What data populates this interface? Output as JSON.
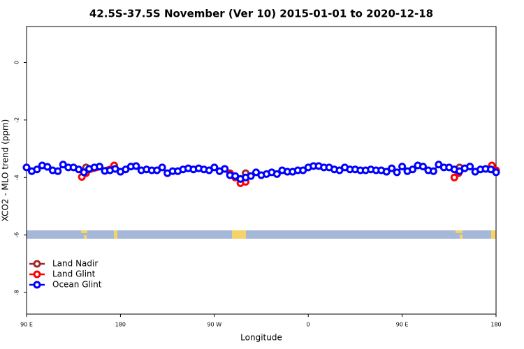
{
  "chart_data": {
    "type": "line",
    "title": "42.5S-37.5S November (Ver 10)   2015-01-01 to 2020-12-18",
    "x_label": "Longitude",
    "y_label": "XCO2 - MLO trend (ppm)",
    "xlim": [
      90,
      540
    ],
    "ylim": [
      -8.75,
      1.25
    ],
    "xticks": [
      {
        "value": 90,
        "label": "90 E"
      },
      180,
      {
        "value": 270,
        "label": "90 W"
      },
      {
        "value": 360,
        "label": "0"
      },
      {
        "value": 450,
        "label": "90 E"
      },
      {
        "value": 540,
        "label": "180"
      }
    ],
    "yticks": [
      0,
      -2,
      -4,
      -6,
      -8
    ],
    "legend": "bottomleft",
    "series": [
      {
        "name": "Land Nadir",
        "color": "#a0282d",
        "x": [
          147,
          null,
          300,
          null,
          505
        ],
        "values": [
          -3.65,
          null,
          -3.85,
          null,
          -3.65
        ]
      },
      {
        "name": "Land Glint",
        "color": "#ff0000",
        "x": [
          143,
          147,
          174,
          null,
          285,
          290,
          295,
          300,
          null,
          500,
          504,
          null,
          536,
          540
        ],
        "values": [
          -3.98,
          -3.85,
          -3.58,
          null,
          -3.85,
          -4.0,
          -4.2,
          -4.15,
          null,
          -4.0,
          -3.85,
          null,
          -3.58,
          -3.75
        ]
      },
      {
        "name": "Ocean Glint",
        "color": "#0000ff",
        "x": [
          90,
          95,
          100,
          105,
          110,
          115,
          120,
          125,
          130,
          135,
          140,
          145,
          150,
          155,
          160,
          165,
          170,
          175,
          180,
          185,
          190,
          195,
          200,
          205,
          210,
          215,
          220,
          225,
          230,
          235,
          240,
          245,
          250,
          255,
          260,
          265,
          270,
          275,
          280,
          285,
          290,
          295,
          300,
          305,
          310,
          315,
          320,
          325,
          330,
          335,
          340,
          345,
          350,
          355,
          360,
          365,
          370,
          375,
          380,
          385,
          390,
          395,
          400,
          405,
          410,
          415,
          420,
          425,
          430,
          435,
          440,
          445,
          450,
          455,
          460,
          465,
          470,
          475,
          480,
          485,
          490,
          495,
          500,
          505,
          510,
          515,
          520,
          525,
          530,
          535,
          540
        ],
        "values": [
          -3.65,
          -3.78,
          -3.72,
          -3.58,
          -3.63,
          -3.75,
          -3.78,
          -3.55,
          -3.65,
          -3.65,
          -3.72,
          -3.82,
          -3.7,
          -3.65,
          -3.62,
          -3.77,
          -3.75,
          -3.7,
          -3.8,
          -3.72,
          -3.62,
          -3.6,
          -3.75,
          -3.72,
          -3.75,
          -3.75,
          -3.65,
          -3.85,
          -3.78,
          -3.78,
          -3.72,
          -3.68,
          -3.72,
          -3.68,
          -3.72,
          -3.75,
          -3.65,
          -3.78,
          -3.7,
          -3.92,
          -3.95,
          -4.05,
          -4.0,
          -3.95,
          -3.82,
          -3.92,
          -3.88,
          -3.82,
          -3.88,
          -3.75,
          -3.8,
          -3.8,
          -3.75,
          -3.75,
          -3.65,
          -3.6,
          -3.6,
          -3.65,
          -3.65,
          -3.72,
          -3.75,
          -3.65,
          -3.72,
          -3.72,
          -3.75,
          -3.75,
          -3.72,
          -3.75,
          -3.75,
          -3.8,
          -3.68,
          -3.82,
          -3.62,
          -3.78,
          -3.72,
          -3.58,
          -3.62,
          -3.75,
          -3.78,
          -3.55,
          -3.65,
          -3.65,
          -3.72,
          -3.78,
          -3.68,
          -3.62,
          -3.8,
          -3.72,
          -3.7,
          -3.72,
          -3.82
        ]
      }
    ]
  }
}
